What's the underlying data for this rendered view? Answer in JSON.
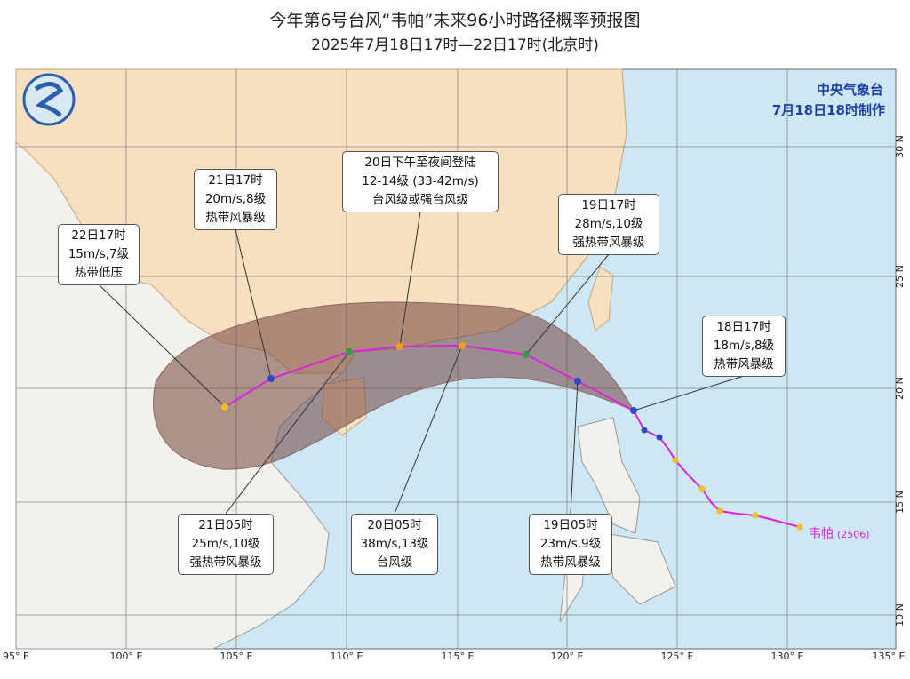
{
  "header": {
    "title": "今年第6号台风“韦帕”未来96小时路径概率预报图",
    "subtitle": "2025年7月18日17时—22日17时(北京时)"
  },
  "agency": {
    "name": "中央气象台",
    "made": "7月18日18时制作"
  },
  "callouts": [
    {
      "lines": [
        "22日17时",
        "15m/s,7级",
        "热带低压"
      ]
    },
    {
      "lines": [
        "21日17时",
        "20m/s,8级",
        "热带风暴级"
      ]
    },
    {
      "lines": [
        "20日下午至夜间登陆",
        "12-14级 (33-42m/s)",
        "台风级或强台风级"
      ]
    },
    {
      "lines": [
        "19日17时",
        "28m/s,10级",
        "强热带风暴级"
      ]
    },
    {
      "lines": [
        "18日17时",
        "18m/s,8级",
        "热带风暴级"
      ]
    },
    {
      "lines": [
        "21日05时",
        "25m/s,10级",
        "强热带风暴级"
      ]
    },
    {
      "lines": [
        "20日05时",
        "38m/s,13级",
        "台风级"
      ]
    },
    {
      "lines": [
        "19日05时",
        "23m/s,9级",
        "热带风暴级"
      ]
    }
  ],
  "typhoon_label": {
    "name": "韦帕",
    "code": "(2506)"
  },
  "lon_labels": [
    "95° E",
    "100° E",
    "105° E",
    "110° E",
    "115° E",
    "120° E",
    "125° E",
    "130° E",
    "135° E"
  ],
  "lat_labels": [
    "30 N",
    "25 N",
    "20 N",
    "15 N",
    "10 N"
  ]
}
